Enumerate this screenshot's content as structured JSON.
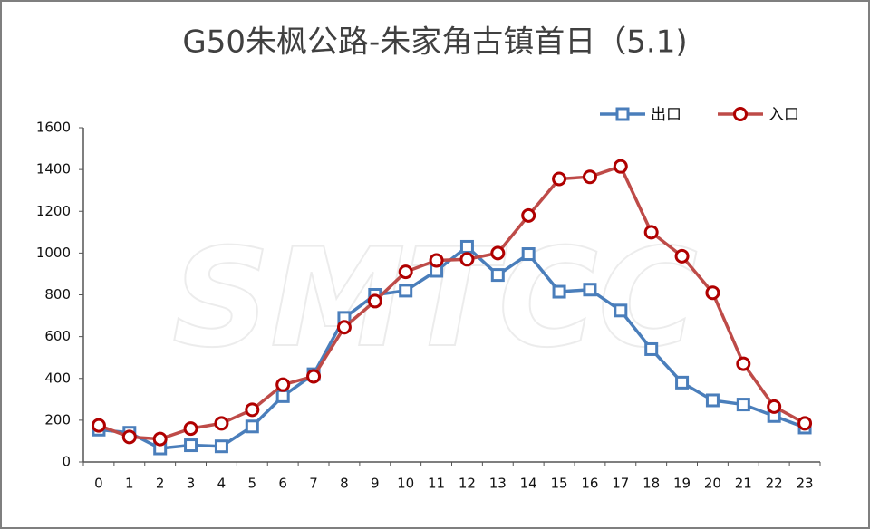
{
  "chart_data": {
    "type": "line",
    "title": "G50朱枫公路-朱家角古镇首日（5.1)",
    "watermark": "SMTCC",
    "categories": [
      "0",
      "1",
      "2",
      "3",
      "4",
      "5",
      "6",
      "7",
      "8",
      "9",
      "10",
      "11",
      "12",
      "13",
      "14",
      "15",
      "16",
      "17",
      "18",
      "19",
      "20",
      "21",
      "22",
      "23"
    ],
    "series": [
      {
        "name": "出口",
        "color": "#4a7ebb",
        "marker": "square",
        "values": [
          155,
          140,
          65,
          80,
          75,
          170,
          315,
          420,
          690,
          800,
          820,
          915,
          1030,
          895,
          995,
          815,
          825,
          725,
          540,
          380,
          295,
          275,
          220,
          165
        ]
      },
      {
        "name": "入口",
        "color": "#be4b48",
        "marker": "circle",
        "values": [
          175,
          120,
          110,
          160,
          185,
          250,
          370,
          410,
          645,
          770,
          910,
          965,
          970,
          1000,
          1180,
          1355,
          1365,
          1415,
          1100,
          985,
          810,
          470,
          265,
          185
        ]
      }
    ],
    "ylim": [
      0,
      1600
    ],
    "yticks": [
      0,
      200,
      400,
      600,
      800,
      1000,
      1200,
      1400,
      1600
    ],
    "grid": false,
    "legend": "top-right"
  }
}
